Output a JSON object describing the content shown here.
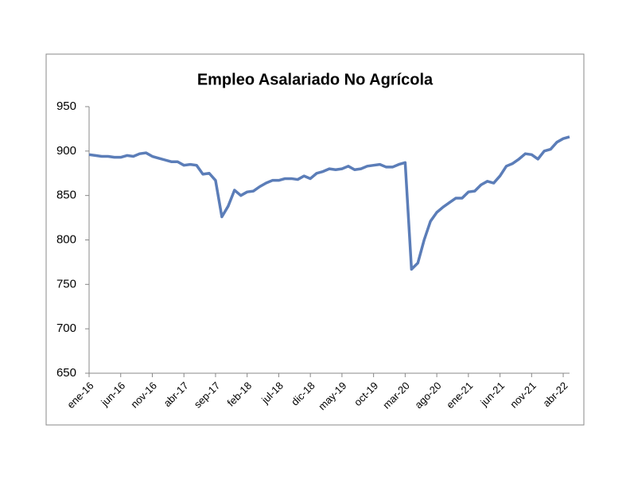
{
  "chart_data": {
    "type": "line",
    "title": "Empleo Asalariado No Agrícola",
    "categories": [
      "ene-16",
      null,
      null,
      null,
      null,
      "jun-16",
      null,
      null,
      null,
      null,
      "nov-16",
      null,
      null,
      null,
      null,
      "abr-17",
      null,
      null,
      null,
      null,
      "sep-17",
      null,
      null,
      null,
      null,
      "feb-18",
      null,
      null,
      null,
      null,
      "jul-18",
      null,
      null,
      null,
      null,
      "dic-18",
      null,
      null,
      null,
      null,
      "may-19",
      null,
      null,
      null,
      null,
      "oct-19",
      null,
      null,
      null,
      null,
      "mar-20",
      null,
      null,
      null,
      null,
      "ago-20",
      null,
      null,
      null,
      null,
      "ene-21",
      null,
      null,
      null,
      null,
      "jun-21",
      null,
      null,
      null,
      null,
      "nov-21",
      null,
      null,
      null,
      null,
      "abr-22",
      null
    ],
    "series": [
      {
        "name": "Empleo Asalariado No Agrícola",
        "color": "#5b7db8",
        "values": [
          896,
          895,
          894,
          894,
          893,
          893,
          895,
          894,
          897,
          898,
          894,
          892,
          890,
          888,
          888,
          884,
          885,
          884,
          874,
          875,
          867,
          826,
          838,
          856,
          850,
          854,
          855,
          860,
          864,
          867,
          867,
          869,
          869,
          868,
          872,
          869,
          875,
          877,
          880,
          879,
          880,
          883,
          879,
          880,
          883,
          884,
          885,
          882,
          882,
          885,
          887,
          767,
          774,
          800,
          821,
          831,
          837,
          842,
          847,
          847,
          854,
          855,
          862,
          866,
          864,
          872,
          883,
          886,
          891,
          897,
          896,
          891,
          900,
          902,
          910,
          914,
          916
        ]
      }
    ],
    "ylim": [
      650,
      950
    ],
    "yticks": [
      650,
      700,
      750,
      800,
      850,
      900,
      950
    ],
    "grid": false
  }
}
